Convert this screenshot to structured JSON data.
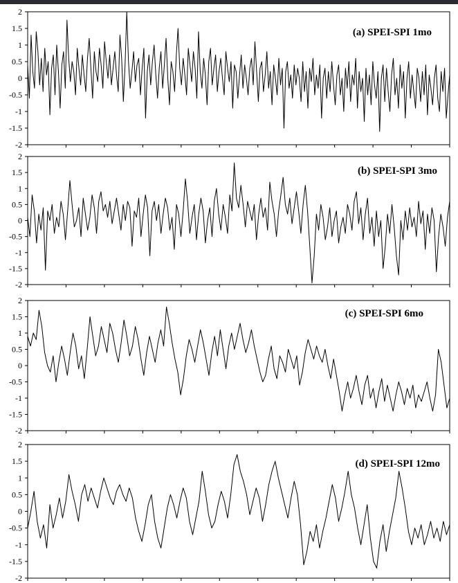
{
  "chart_data": [
    {
      "type": "line",
      "title": "(a) SPEI-SPI  1mo",
      "ylim": [
        -2,
        2
      ],
      "yticks": [
        "2",
        "1.5",
        "1",
        "0.5",
        "0",
        "-0.5",
        "-1",
        "-1.5",
        "-2"
      ],
      "grid": false,
      "series": [
        {
          "values": [
            0.4,
            -0.6,
            1.3,
            0.2,
            -0.3,
            1.4,
            0.8,
            -0.2,
            0.6,
            -0.4,
            0.9,
            0.1,
            0.5,
            -1.1,
            0.3,
            0.7,
            -0.5,
            1.0,
            0.2,
            -0.9,
            0.4,
            0.8,
            -0.3,
            1.75,
            0.6,
            -0.1,
            0.5,
            0.2,
            -0.5,
            0.9,
            0.3,
            -0.2,
            0.7,
            0.1,
            -0.4,
            0.6,
            1.2,
            0.3,
            -0.6,
            0.8,
            0.2,
            -0.1,
            0.9,
            0.4,
            -0.3,
            1.1,
            0.5,
            0.0,
            0.7,
            -0.2,
            0.3,
            0.8,
            0.1,
            -0.4,
            1.3,
            0.6,
            -0.7,
            0.4,
            2.0,
            0.5,
            -0.3,
            0.2,
            0.8,
            -0.1,
            0.4,
            0.6,
            -0.5,
            0.3,
            0.9,
            -1.2,
            0.2,
            0.7,
            -0.2,
            0.5,
            1.0,
            0.1,
            -0.6,
            0.3,
            0.8,
            -0.3,
            0.4,
            1.2,
            0.0,
            -0.8,
            0.5,
            0.2,
            -0.4,
            0.7,
            1.5,
            0.3,
            -0.2,
            0.6,
            0.1,
            -0.5,
            0.9,
            0.4,
            -0.1,
            0.8,
            0.3,
            -0.6,
            1.4,
            0.2,
            -0.3,
            0.6,
            0.1,
            -0.8,
            0.5,
            0.9,
            -0.2,
            0.3,
            0.7,
            -0.4,
            0.2,
            0.6,
            0.0,
            -0.5,
            0.8,
            0.3,
            -0.1,
            0.5,
            -0.9,
            0.4,
            0.2,
            -0.6,
            0.1,
            0.7,
            -0.3,
            0.4,
            0.0,
            -0.5,
            0.3,
            0.6,
            -0.2,
            1.1,
            0.2,
            -0.7,
            0.3,
            0.5,
            -0.4,
            0.1,
            0.8,
            -0.3,
            0.2,
            -0.8,
            0.4,
            0.0,
            -0.5,
            0.6,
            -0.2,
            0.3,
            -1.5,
            0.2,
            0.5,
            -0.3,
            0.1,
            -0.6,
            0.4,
            -0.2,
            0.3,
            0.0,
            -0.7,
            0.5,
            -0.4,
            0.2,
            -0.9,
            0.3,
            -0.1,
            0.6,
            -0.5,
            0.1,
            -0.3,
            0.4,
            -1.2,
            0.0,
            0.3,
            -0.6,
            0.2,
            -0.4,
            0.5,
            -0.2,
            -0.8,
            0.1,
            0.4,
            -0.5,
            0.0,
            -1.0,
            0.3,
            -0.3,
            0.5,
            -0.7,
            0.1,
            -0.2,
            0.6,
            -0.9,
            0.2,
            -0.4,
            0.0,
            -1.3,
            0.3,
            -0.5,
            0.1,
            -0.8,
            0.5,
            -0.2,
            -0.6,
            0.2,
            -1.6,
            0.0,
            0.4,
            -0.7,
            0.3,
            -0.4,
            -1.0,
            0.1,
            0.6,
            -0.5,
            0.0,
            -0.9,
            0.4,
            -0.3,
            0.2,
            -1.2,
            0.0,
            0.5,
            -0.6,
            0.1,
            -0.4,
            -0.9,
            0.3,
            0.0,
            -0.7,
            0.2,
            -0.5,
            0.4,
            -1.1,
            0.1,
            -0.3,
            -0.8,
            0.0,
            0.4,
            -0.6,
            -1.0,
            0.2,
            -0.4,
            0.3,
            -1.2,
            -0.5,
            0.1
          ]
        }
      ]
    },
    {
      "type": "line",
      "title": "(b)  SPEI-SPI   3mo",
      "ylim": [
        -2,
        2
      ],
      "yticks": [
        "2",
        "1.5",
        "1",
        "0.5",
        "0",
        "-0.5",
        "-1",
        "-1.5",
        "-2"
      ],
      "grid": false,
      "series": [
        {
          "values": [
            0.1,
            -0.5,
            0.8,
            0.3,
            -0.7,
            0.2,
            -0.3,
            0.4,
            -1.55,
            0.3,
            0.0,
            0.5,
            -0.4,
            0.1,
            -0.2,
            0.6,
            0.2,
            -0.6,
            0.3,
            1.25,
            0.5,
            -0.2,
            0.0,
            0.4,
            -0.5,
            0.7,
            0.2,
            -0.3,
            0.1,
            0.8,
            0.4,
            -0.4,
            0.6,
            0.9,
            0.3,
            0.5,
            0.1,
            0.6,
            -0.1,
            0.3,
            0.7,
            0.2,
            -0.3,
            0.5,
            0.0,
            0.6,
            0.4,
            -0.8,
            0.3,
            0.1,
            0.7,
            -0.5,
            0.2,
            0.8,
            0.4,
            -1.1,
            0.3,
            0.6,
            0.0,
            0.5,
            -0.4,
            0.2,
            0.7,
            0.4,
            -0.3,
            0.1,
            -0.9,
            0.5,
            0.2,
            -0.5,
            0.3,
            1.3,
            0.6,
            -0.4,
            0.1,
            0.5,
            -0.6,
            0.2,
            0.7,
            0.3,
            -0.7,
            0.0,
            0.4,
            -0.5,
            0.6,
            1.0,
            0.2,
            -0.3,
            0.5,
            0.1,
            -0.4,
            0.8,
            0.3,
            1.8,
            0.7,
            0.4,
            1.1,
            0.5,
            -0.2,
            0.6,
            0.3,
            0.0,
            0.5,
            -0.6,
            0.2,
            0.7,
            0.1,
            0.4,
            -0.3,
            1.2,
            0.6,
            0.2,
            -0.5,
            0.3,
            0.8,
            1.35,
            0.5,
            0.2,
            0.7,
            -0.1,
            0.4,
            0.9,
            0.3,
            -0.4,
            0.5,
            1.1,
            0.3,
            -0.8,
            -1.95,
            -1.1,
            0.2,
            -0.3,
            0.5,
            0.1,
            -0.6,
            -0.2,
            0.4,
            -0.5,
            0.0,
            0.3,
            -0.7,
            -0.2,
            0.1,
            -0.4,
            0.5,
            0.2,
            -0.3,
            0.6,
            0.9,
            -0.1,
            0.4,
            -0.6,
            0.2,
            0.7,
            -0.4,
            0.1,
            -0.8,
            0.3,
            -0.5,
            0.0,
            -1.5,
            -0.8,
            0.2,
            -0.4,
            0.5,
            -0.2,
            -1.1,
            -1.7,
            0.0,
            -0.6,
            0.3,
            -0.3,
            0.4,
            -0.2,
            0.1,
            -0.5,
            0.6,
            -0.1,
            0.3,
            -0.9,
            0.2,
            -0.4,
            0.4,
            0.0,
            -1.6,
            -0.5,
            0.2,
            -0.2,
            -0.8,
            0.1,
            0.6
          ]
        }
      ]
    },
    {
      "type": "line",
      "title": "(c) SPEI-SPI  6mo",
      "ylim": [
        -2,
        2
      ],
      "yticks": [
        "2",
        "1.5",
        "1",
        "0.5",
        "0",
        "-0.5",
        "-1",
        "-1.5",
        "-2"
      ],
      "grid": false,
      "series": [
        {
          "values": [
            0.9,
            0.6,
            1.0,
            0.8,
            1.7,
            1.2,
            0.4,
            0.0,
            -0.2,
            0.3,
            -0.5,
            0.1,
            0.6,
            0.2,
            -0.3,
            0.4,
            1.0,
            0.6,
            -0.1,
            0.3,
            -0.4,
            0.5,
            1.5,
            0.9,
            0.3,
            0.6,
            1.2,
            0.8,
            0.4,
            1.3,
            1.0,
            0.5,
            0.1,
            0.7,
            1.4,
            0.9,
            0.3,
            0.6,
            1.2,
            0.8,
            0.2,
            -0.3,
            0.4,
            0.9,
            0.5,
            0.1,
            0.7,
            1.1,
            0.6,
            1.8,
            1.3,
            0.7,
            0.2,
            -0.2,
            -0.9,
            -0.4,
            0.3,
            0.8,
            0.5,
            0.1,
            0.6,
            1.1,
            0.7,
            0.2,
            -0.3,
            0.4,
            0.9,
            0.3,
            1.1,
            0.5,
            -0.1,
            0.6,
            1.0,
            0.5,
            0.9,
            1.3,
            0.8,
            0.4,
            0.7,
            1.1,
            0.6,
            0.2,
            -0.2,
            -0.5,
            -0.3,
            0.2,
            0.6,
            -0.1,
            -0.4,
            0.3,
            0.1,
            -0.2,
            0.5,
            0.2,
            -0.1,
            0.3,
            -0.6,
            -0.2,
            0.4,
            0.8,
            0.5,
            0.2,
            0.6,
            0.3,
            0.1,
            0.5,
            0.0,
            -0.4,
            0.2,
            -0.3,
            -0.8,
            -1.4,
            -0.9,
            -0.5,
            -1.0,
            -0.7,
            -0.3,
            -0.8,
            -1.2,
            -0.6,
            -0.3,
            -1.0,
            -0.7,
            -1.3,
            -0.8,
            -0.4,
            -1.1,
            -0.6,
            -1.0,
            -1.4,
            -0.9,
            -0.5,
            -0.8,
            -1.2,
            -0.7,
            -1.0,
            -0.6,
            -1.3,
            -0.9,
            -1.1,
            -0.8,
            -0.5,
            -1.0,
            -1.4,
            -0.9,
            0.5,
            0.1,
            -0.6,
            -1.3,
            -1.0
          ]
        }
      ]
    },
    {
      "type": "line",
      "title": "(d)  SPEI-SPI  12mo",
      "ylim": [
        -2,
        2
      ],
      "yticks": [
        "2",
        "1.5",
        "1",
        "0.5",
        "0",
        "-0.5",
        "-1",
        "-1.5",
        "-2"
      ],
      "grid": false,
      "series": [
        {
          "values": [
            -0.5,
            0.0,
            0.6,
            -0.3,
            -0.8,
            -0.4,
            -1.1,
            0.2,
            -0.5,
            -0.1,
            0.4,
            -0.2,
            0.3,
            1.1,
            0.6,
            0.2,
            -0.3,
            0.5,
            0.8,
            0.3,
            0.7,
            0.4,
            0.1,
            0.6,
            1.0,
            0.7,
            0.4,
            0.2,
            0.6,
            0.8,
            0.5,
            0.3,
            0.7,
            0.4,
            -0.2,
            -0.6,
            -0.9,
            -0.4,
            0.2,
            0.5,
            -0.3,
            -0.8,
            -1.1,
            -0.5,
            0.1,
            0.5,
            0.2,
            -0.2,
            0.3,
            0.7,
            0.4,
            -0.3,
            -0.7,
            -0.2,
            0.3,
            1.2,
            0.6,
            -0.1,
            -0.5,
            -0.3,
            0.2,
            0.6,
            0.3,
            -0.2,
            0.5,
            1.4,
            1.7,
            1.2,
            0.9,
            0.5,
            -0.1,
            0.3,
            0.7,
            0.4,
            -0.3,
            0.2,
            0.8,
            1.2,
            1.5,
            1.0,
            0.6,
            0.2,
            -0.2,
            0.4,
            0.9,
            0.5,
            -0.4,
            -1.6,
            -1.2,
            -0.6,
            -0.9,
            -0.4,
            -1.1,
            -0.6,
            -0.2,
            0.3,
            0.8,
            0.4,
            -0.3,
            0.1,
            0.6,
            1.2,
            0.5,
            0.1,
            -0.5,
            -1.0,
            -0.4,
            0.2,
            -0.8,
            -1.5,
            -1.7,
            -0.9,
            -0.4,
            -1.2,
            -0.6,
            -0.1,
            0.4,
            1.2,
            0.7,
            0.1,
            -0.6,
            -1.0,
            -0.5,
            -0.8,
            -0.4,
            -1.0,
            -0.7,
            -0.3,
            -0.8,
            -0.5,
            -0.9,
            -0.3,
            -0.7,
            -0.4
          ]
        }
      ]
    }
  ]
}
